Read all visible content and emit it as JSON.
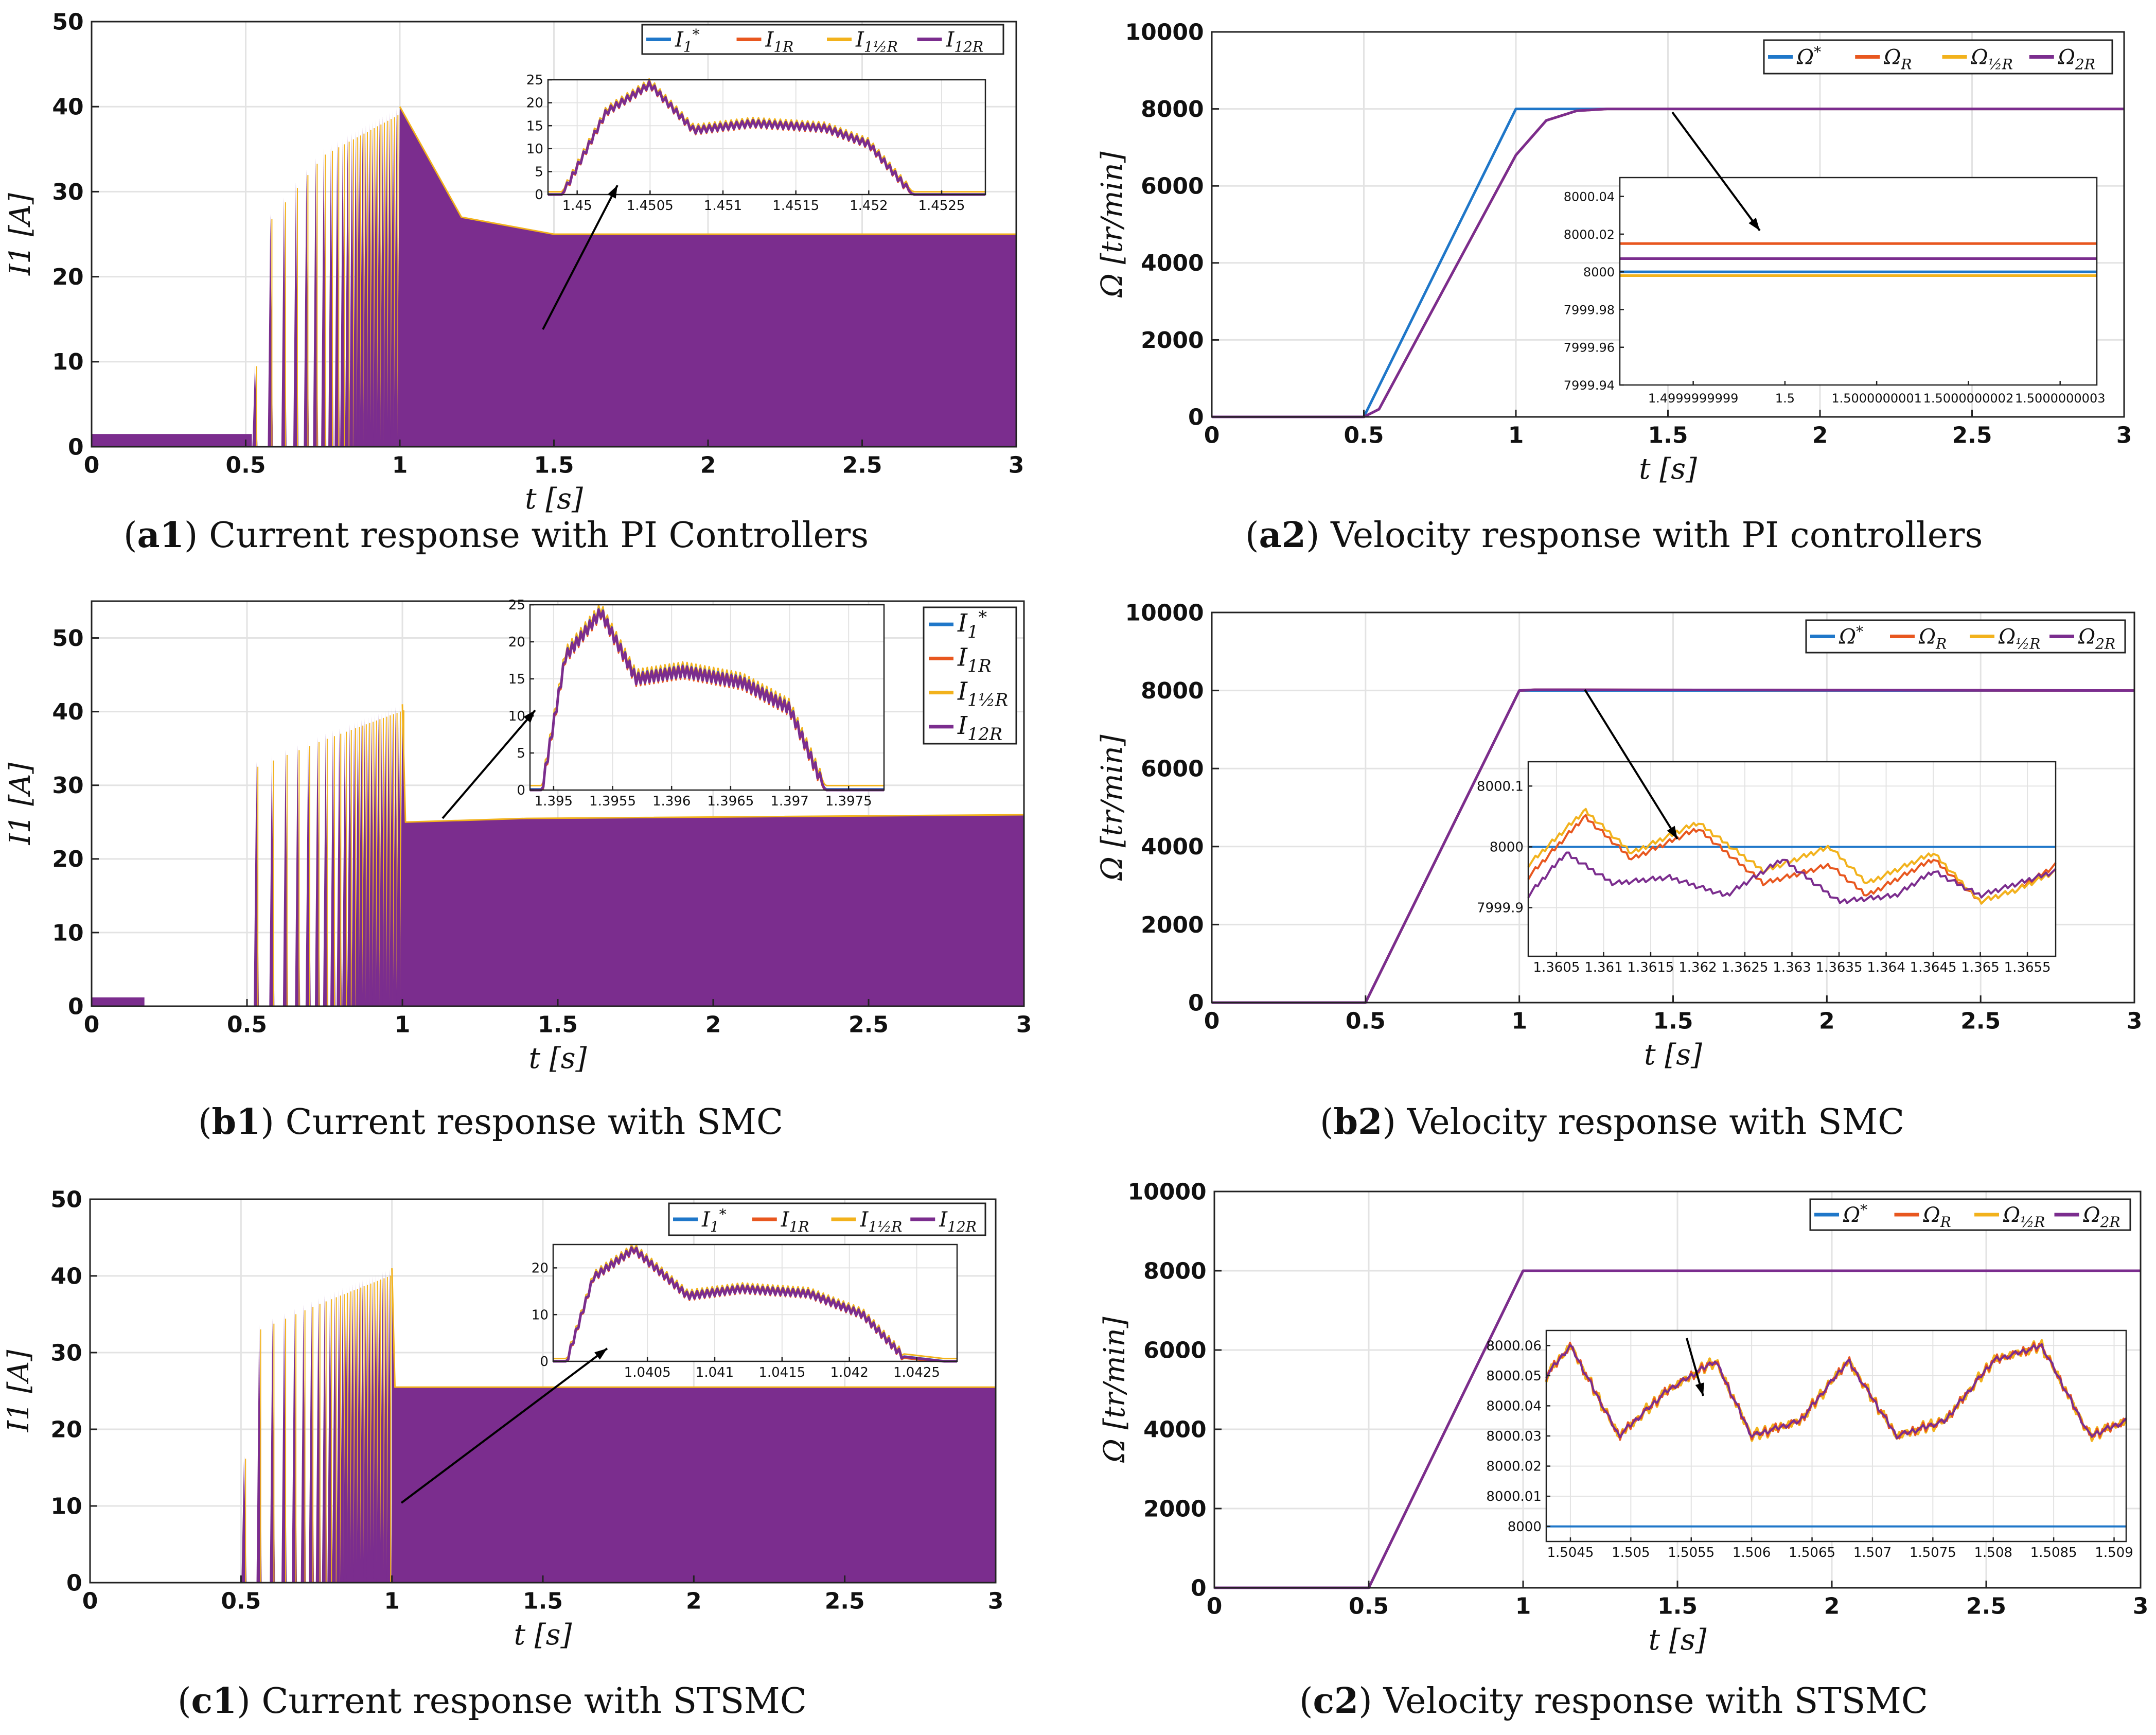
{
  "colors": {
    "reference": "#1f77c9",
    "series_r": "#e8571f",
    "series_half_r": "#f2b21c",
    "series_2r": "#7b2d8e",
    "grid": "#e3e3e3",
    "axis": "#222222"
  },
  "captions": [
    {
      "tag": "a1",
      "text": "Current response with PI Controllers"
    },
    {
      "tag": "a2",
      "text": "Velocity response with PI controllers"
    },
    {
      "tag": "b1",
      "text": "Current response with SMC"
    },
    {
      "tag": "b2",
      "text": "Velocity response with SMC"
    },
    {
      "tag": "c1",
      "text": "Current response with STSMC"
    },
    {
      "tag": "c2",
      "text": "Velocity response with STSMC"
    }
  ],
  "chart_data": [
    {
      "id": "a1",
      "type": "line",
      "xlabel": "t [s]",
      "ylabel": "I1 [A]",
      "xlim": [
        0,
        3
      ],
      "ylim": [
        0,
        50
      ],
      "xticks": [
        "0",
        "0.5",
        "1",
        "1.5",
        "2",
        "2.5",
        "3"
      ],
      "yticks": [
        "0",
        "10",
        "20",
        "30",
        "40",
        "50"
      ],
      "legend": {
        "placement": "top-right",
        "orientation": "horizontal",
        "entries": [
          "I1*",
          "I1R",
          "I1½R",
          "I12R"
        ]
      },
      "series": [
        {
          "name": "I1*",
          "x": [
            0,
            0.52,
            0.55,
            0.75,
            1.0,
            1.2,
            1.5,
            3.0
          ],
          "y": [
            1.5,
            1.5,
            26,
            35,
            40,
            27,
            25,
            25
          ]
        },
        {
          "name": "I12R",
          "x": [
            0,
            0.52,
            0.55,
            0.75,
            1.0,
            1.2,
            1.5,
            3.0
          ],
          "y": [
            1.5,
            1.5,
            26,
            35,
            40,
            27,
            25,
            25
          ]
        }
      ],
      "inset": {
        "xlim": [
          1.4498,
          1.4528
        ],
        "ylim": [
          0,
          25
        ],
        "xticks": [
          "1.45",
          "1.4505",
          "1.451",
          "1.4515",
          "1.452",
          "1.4525"
        ],
        "yticks": [
          "0",
          "5",
          "10",
          "15",
          "20",
          "25"
        ],
        "x": [
          1.4499,
          1.4502,
          1.4505,
          1.4508,
          1.4512,
          1.4517,
          1.452,
          1.4523,
          1.4527
        ],
        "y": [
          0,
          18,
          24,
          14,
          15.5,
          14.5,
          11,
          0,
          0
        ]
      }
    },
    {
      "id": "a2",
      "type": "line",
      "xlabel": "t [s]",
      "ylabel": "Ω [tr/min]",
      "xlim": [
        0,
        3
      ],
      "ylim": [
        0,
        10000
      ],
      "xticks": [
        "0",
        "0.5",
        "1",
        "1.5",
        "2",
        "2.5",
        "3"
      ],
      "yticks": [
        "0",
        "2000",
        "4000",
        "6000",
        "8000",
        "10000"
      ],
      "legend": {
        "placement": "top-right",
        "orientation": "horizontal",
        "entries": [
          "Ω*",
          "ΩR",
          "Ω½R",
          "Ω2R"
        ]
      },
      "series": [
        {
          "name": "Ω*",
          "x": [
            0,
            0.5,
            1.0,
            3.0
          ],
          "y": [
            0,
            0,
            8000,
            8000
          ]
        },
        {
          "name": "Ω2R",
          "x": [
            0,
            0.5,
            0.55,
            1.0,
            1.1,
            1.2,
            1.3,
            3.0
          ],
          "y": [
            0,
            0,
            200,
            6800,
            7700,
            7950,
            8000,
            8000
          ]
        }
      ],
      "inset": {
        "ylim": [
          7999.94,
          8000.05
        ],
        "xticks": [
          "1.4999999999",
          "1.5",
          "1.5000000001",
          "1.5000000002",
          "1.5000000003"
        ],
        "yticks": [
          "7999.94",
          "7999.96",
          "7999.98",
          "8000",
          "8000.02",
          "8000.04"
        ],
        "levels": [
          {
            "name": "Ω*",
            "y": 8000.0
          },
          {
            "name": "ΩR",
            "y": 8000.015
          },
          {
            "name": "Ω½R",
            "y": 7999.998
          },
          {
            "name": "Ω2R",
            "y": 8000.007
          }
        ]
      }
    },
    {
      "id": "b1",
      "type": "line",
      "xlabel": "t [s]",
      "ylabel": "I1 [A]",
      "xlim": [
        0,
        3
      ],
      "ylim": [
        0,
        55
      ],
      "xticks": [
        "0",
        "0.5",
        "1",
        "1.5",
        "2",
        "2.5",
        "3"
      ],
      "yticks": [
        "0",
        "10",
        "20",
        "30",
        "40",
        "50"
      ],
      "legend": {
        "placement": "top-right",
        "orientation": "vertical",
        "entries": [
          "I1*",
          "I1R",
          "I1½R",
          "I12R"
        ]
      },
      "series": [
        {
          "name": "I1*",
          "x": [
            0,
            0.17,
            0.18,
            0.5,
            0.52,
            0.75,
            1.0,
            1.01,
            1.4,
            3.0
          ],
          "y": [
            1.2,
            1.2,
            0,
            0,
            33,
            37,
            41,
            25,
            25.5,
            26
          ]
        },
        {
          "name": "I12R",
          "x": [
            0,
            0.17,
            0.18,
            0.5,
            0.52,
            0.75,
            1.0,
            1.01,
            1.4,
            3.0
          ],
          "y": [
            1.2,
            1.2,
            0,
            0,
            33,
            37,
            41,
            25,
            25.5,
            26
          ]
        }
      ],
      "inset": {
        "xlim": [
          1.3948,
          1.3978
        ],
        "ylim": [
          0,
          25
        ],
        "xticks": [
          "1.395",
          "1.3955",
          "1.396",
          "1.3965",
          "1.397",
          "1.3975"
        ],
        "yticks": [
          "0",
          "5",
          "10",
          "15",
          "20",
          "25"
        ],
        "x": [
          1.3949,
          1.3951,
          1.3954,
          1.3957,
          1.3961,
          1.3966,
          1.397,
          1.3973,
          1.3977
        ],
        "y": [
          0,
          18,
          24,
          15,
          16,
          14.5,
          11,
          0,
          0
        ]
      }
    },
    {
      "id": "b2",
      "type": "line",
      "xlabel": "t [s]",
      "ylabel": "Ω [tr/min]",
      "xlim": [
        0,
        3
      ],
      "ylim": [
        0,
        10000
      ],
      "xticks": [
        "0",
        "0.5",
        "1",
        "1.5",
        "2",
        "2.5",
        "3"
      ],
      "yticks": [
        "0",
        "2000",
        "4000",
        "6000",
        "8000",
        "10000"
      ],
      "legend": {
        "placement": "top-right",
        "orientation": "horizontal",
        "entries": [
          "Ω*",
          "ΩR",
          "Ω½R",
          "Ω2R"
        ]
      },
      "series": [
        {
          "name": "Ω*",
          "x": [
            0,
            0.5,
            1.0,
            3.0
          ],
          "y": [
            0,
            0,
            8000,
            8000
          ]
        },
        {
          "name": "Ω2R",
          "x": [
            0,
            0.5,
            1.0,
            1.05,
            3.0
          ],
          "y": [
            0,
            0,
            8000,
            8020,
            8000
          ]
        }
      ],
      "inset": {
        "xlim": [
          1.3602,
          1.3658
        ],
        "ylim": [
          7999.82,
          8000.14
        ],
        "xticks": [
          "1.3605",
          "1.361",
          "1.3615",
          "1.362",
          "1.3625",
          "1.363",
          "1.3635",
          "1.364",
          "1.3645",
          "1.365",
          "1.3655"
        ],
        "yticks": [
          "7999.9",
          "8000",
          "8000.1"
        ],
        "series": [
          {
            "name": "Ω*",
            "x": [
              1.3602,
              1.3658
            ],
            "y": [
              8000,
              8000
            ]
          },
          {
            "name": "ΩR",
            "x": [
              1.3602,
              1.3608,
              1.3613,
              1.362,
              1.3627,
              1.3634,
              1.3638,
              1.3645,
              1.365,
              1.3654,
              1.3658
            ],
            "y": [
              7999.95,
              8000.05,
              7999.98,
              8000.03,
              7999.94,
              7999.97,
              7999.92,
              7999.98,
              7999.91,
              7999.93,
              7999.97
            ]
          },
          {
            "name": "Ω½R",
            "x": [
              1.3602,
              1.3608,
              1.3613,
              1.362,
              1.3627,
              1.3634,
              1.3638,
              1.3645,
              1.365,
              1.3654,
              1.3658
            ],
            "y": [
              7999.97,
              8000.06,
              7999.99,
              8000.04,
              7999.96,
              8000.0,
              7999.94,
              7999.99,
              7999.91,
              7999.93,
              7999.96
            ]
          },
          {
            "name": "Ω2R",
            "x": [
              1.3602,
              1.3606,
              1.3611,
              1.3617,
              1.3623,
              1.3629,
              1.3635,
              1.3641,
              1.3645,
              1.365,
              1.3658
            ],
            "y": [
              7999.92,
              7999.99,
              7999.94,
              7999.95,
              7999.92,
              7999.98,
              7999.91,
              7999.92,
              7999.96,
              7999.92,
              7999.96
            ]
          }
        ]
      }
    },
    {
      "id": "c1",
      "type": "line",
      "xlabel": "t [s]",
      "ylabel": "I1 [A]",
      "xlim": [
        0,
        3
      ],
      "ylim": [
        0,
        50
      ],
      "xticks": [
        "0",
        "0.5",
        "1",
        "1.5",
        "2",
        "2.5",
        "3"
      ],
      "yticks": [
        "0",
        "10",
        "20",
        "30",
        "40",
        "50"
      ],
      "legend": {
        "placement": "top-right",
        "orientation": "horizontal",
        "entries": [
          "I1*",
          "I1R",
          "I1½R",
          "I12R"
        ]
      },
      "series": [
        {
          "name": "I1*",
          "x": [
            0,
            0.5,
            0.52,
            0.75,
            1.0,
            1.01,
            3.0
          ],
          "y": [
            0,
            0,
            33,
            37,
            41,
            25.5,
            25.5
          ]
        },
        {
          "name": "I12R",
          "x": [
            0,
            0.5,
            0.52,
            0.75,
            1.0,
            1.01,
            3.0
          ],
          "y": [
            0,
            0,
            33,
            37,
            41,
            25.5,
            25.5
          ]
        }
      ],
      "inset": {
        "xlim": [
          1.0398,
          1.0428
        ],
        "ylim": [
          0,
          25
        ],
        "xticks": [
          "1.0405",
          "1.041",
          "1.0415",
          "1.042",
          "1.0425"
        ],
        "yticks": [
          "0",
          "10",
          "20"
        ],
        "x": [
          1.0399,
          1.0401,
          1.0404,
          1.0408,
          1.0412,
          1.0417,
          1.0421,
          1.0424,
          1.0427
        ],
        "y": [
          0,
          18,
          24,
          14,
          15.5,
          14.5,
          10,
          1,
          0
        ]
      }
    },
    {
      "id": "c2",
      "type": "line",
      "xlabel": "t [s]",
      "ylabel": "Ω [tr/min]",
      "xlim": [
        0,
        3
      ],
      "ylim": [
        0,
        10000
      ],
      "xticks": [
        "0",
        "0.5",
        "1",
        "1.5",
        "2",
        "2.5",
        "3"
      ],
      "yticks": [
        "0",
        "2000",
        "4000",
        "6000",
        "8000",
        "10000"
      ],
      "legend": {
        "placement": "top-right",
        "orientation": "horizontal",
        "entries": [
          "Ω*",
          "ΩR",
          "Ω½R",
          "Ω2R"
        ]
      },
      "series": [
        {
          "name": "Ω*",
          "x": [
            0,
            0.5,
            1.0,
            3.0
          ],
          "y": [
            0,
            0,
            8000,
            8000
          ]
        },
        {
          "name": "Ω2R",
          "x": [
            0,
            0.5,
            1.0,
            3.0
          ],
          "y": [
            0,
            0,
            8000,
            8000
          ]
        }
      ],
      "inset": {
        "xlim": [
          1.5043,
          1.5091
        ],
        "ylim": [
          7999.995,
          8000.065
        ],
        "xticks": [
          "1.5045",
          "1.505",
          "1.5055",
          "1.506",
          "1.5065",
          "1.507",
          "1.5075",
          "1.508",
          "1.5085",
          "1.509"
        ],
        "yticks": [
          "8000",
          "8000.01",
          "8000.02",
          "8000.03",
          "8000.04",
          "8000.05",
          "8000.06"
        ],
        "series": [
          {
            "name": "Ω*",
            "x": [
              1.5043,
              1.5091
            ],
            "y": [
              8000,
              8000
            ]
          },
          {
            "name": "Ω2R",
            "x": [
              1.5043,
              1.5045,
              1.5049,
              1.5053,
              1.5057,
              1.506,
              1.5064,
              1.5068,
              1.5072,
              1.5076,
              1.508,
              1.5084,
              1.5088,
              1.5091
            ],
            "y": [
              8000.05,
              8000.06,
              8000.03,
              8000.045,
              8000.055,
              8000.03,
              8000.035,
              8000.055,
              8000.03,
              8000.035,
              8000.055,
              8000.06,
              8000.03,
              8000.035
            ]
          }
        ]
      }
    }
  ]
}
